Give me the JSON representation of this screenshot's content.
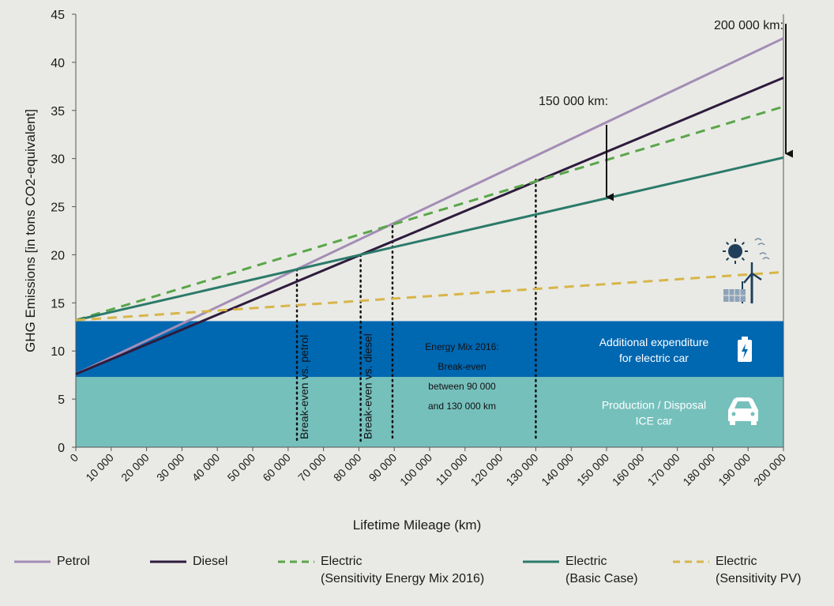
{
  "chart_data": {
    "type": "line",
    "ylabel": "GHG Emissions [in tons CO2-equivalent]",
    "xlabel": "Lifetime Mileage (km)",
    "ylim": [
      0,
      45
    ],
    "xlim": [
      0,
      200000
    ],
    "yticks": [
      0,
      5,
      10,
      15,
      20,
      25,
      30,
      35,
      40,
      45
    ],
    "ytick_labels": [
      "0",
      "5",
      "10",
      "15",
      "20",
      "25",
      "30",
      "35",
      "40",
      "45"
    ],
    "xticks": [
      0,
      10000,
      20000,
      30000,
      40000,
      50000,
      60000,
      70000,
      80000,
      90000,
      100000,
      110000,
      120000,
      130000,
      140000,
      150000,
      160000,
      170000,
      180000,
      190000,
      200000
    ],
    "xtick_labels": [
      "0",
      "10 000",
      "20 000",
      "30 000",
      "40 000",
      "50 000",
      "60 000",
      "70 000",
      "80 000",
      "90 000",
      "100 000",
      "110 000",
      "120 000",
      "130 000",
      "140 000",
      "150 000",
      "160 000",
      "170 000",
      "180 000",
      "190 000",
      "200 000"
    ],
    "series": [
      {
        "name": "Petrol",
        "x": [
          0,
          200000
        ],
        "values": [
          7.6,
          42.5
        ],
        "color": "#a48db6",
        "dash": "solid"
      },
      {
        "name": "Diesel",
        "x": [
          0,
          200000
        ],
        "values": [
          7.6,
          38.4
        ],
        "color": "#2e1b3d",
        "dash": "solid"
      },
      {
        "name": "Electric (Sensitivity Energy Mix 2016)",
        "x": [
          0,
          200000
        ],
        "values": [
          13.2,
          35.4
        ],
        "color": "#5aa64a",
        "dash": "dashed"
      },
      {
        "name": "Electric (Basic Case)",
        "x": [
          0,
          200000
        ],
        "values": [
          13.2,
          30.1
        ],
        "color": "#2b7a6a",
        "dash": "solid"
      },
      {
        "name": "Electric (Sensitivity PV)",
        "x": [
          0,
          200000
        ],
        "values": [
          13.2,
          18.2
        ],
        "color": "#d8b54a",
        "dash": "dashed"
      }
    ],
    "bands": [
      {
        "from": 0,
        "to": 7.3,
        "color": "#76c0bc",
        "label_lines": [
          "Production / Disposal",
          "ICE car"
        ]
      },
      {
        "from": 7.3,
        "to": 13.1,
        "color": "#0067b1",
        "label_lines": [
          "Additional expenditure",
          "for electric car"
        ]
      }
    ],
    "vertical_markers": [
      {
        "x": 62500,
        "y_top": 18.5,
        "label": "Break-even vs. petrol"
      },
      {
        "x": 80500,
        "y_top": 20.0,
        "label": "Break-even vs. diesel"
      },
      {
        "x": 89500,
        "y_top": 23.0,
        "label": ""
      },
      {
        "x": 130000,
        "y_top": 27.8,
        "label": ""
      }
    ],
    "energy_mix_note": [
      "Energy Mix 2016:",
      "Break-even",
      "between 90 000",
      "and 130 000 km"
    ],
    "arrows": [
      {
        "label": "150 000  km:",
        "x": 150000,
        "y_from": 33.5,
        "y_to": 26.0
      },
      {
        "label": "200  000 km:",
        "x": 200000,
        "y_from": 44.0,
        "y_to": 30.5
      }
    ],
    "grid": false,
    "legend_position": "bottom"
  },
  "legend": [
    {
      "lines": [
        "Petrol"
      ],
      "color": "#a48db6",
      "dash": false
    },
    {
      "lines": [
        "Diesel"
      ],
      "color": "#2e1b3d",
      "dash": false
    },
    {
      "lines": [
        "Electric",
        "(Sensitivity Energy Mix 2016)"
      ],
      "color": "#5aa64a",
      "dash": true
    },
    {
      "lines": [
        "Electric",
        "(Basic Case)"
      ],
      "color": "#2b7a6a",
      "dash": false
    },
    {
      "lines": [
        "Electric",
        "(Sensitivity PV)"
      ],
      "color": "#d8b54a",
      "dash": true
    }
  ],
  "icons": {
    "battery": "battery-charging-icon",
    "car": "car-icon",
    "renewables": "solar-wind-icon"
  }
}
